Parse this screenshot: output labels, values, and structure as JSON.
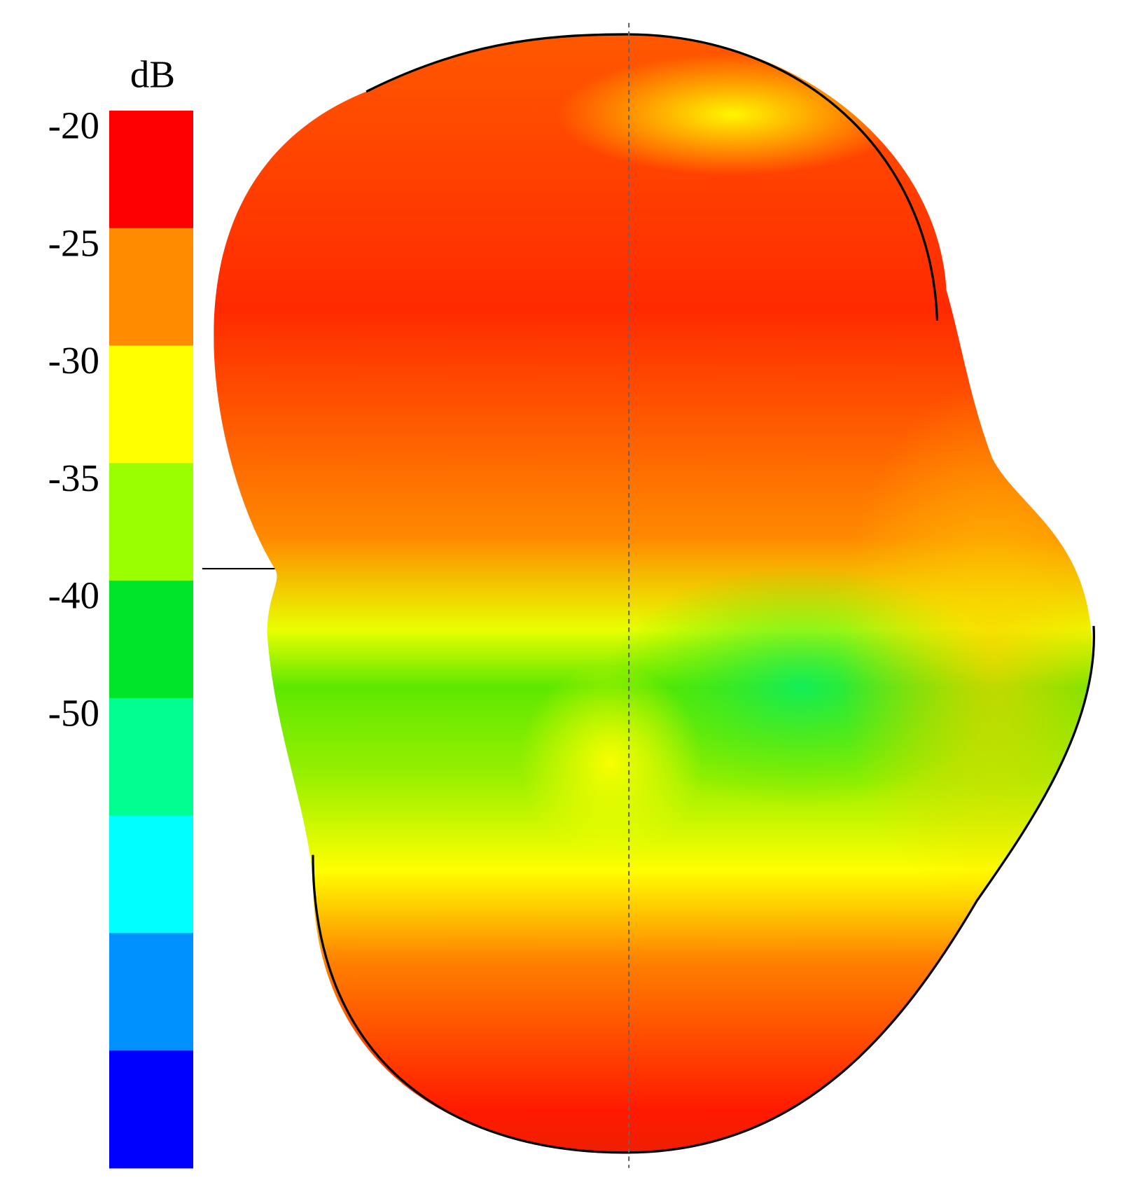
{
  "colorbar": {
    "unit": "dB",
    "ticks": [
      -20,
      -25,
      -30,
      -35,
      -40,
      -50
    ],
    "colors": [
      "#ff0000",
      "#ff8c00",
      "#ffff00",
      "#99ff00",
      "#00e52a",
      "#00ff90",
      "#00ffff",
      "#0090ff",
      "#0000ff"
    ]
  }
}
